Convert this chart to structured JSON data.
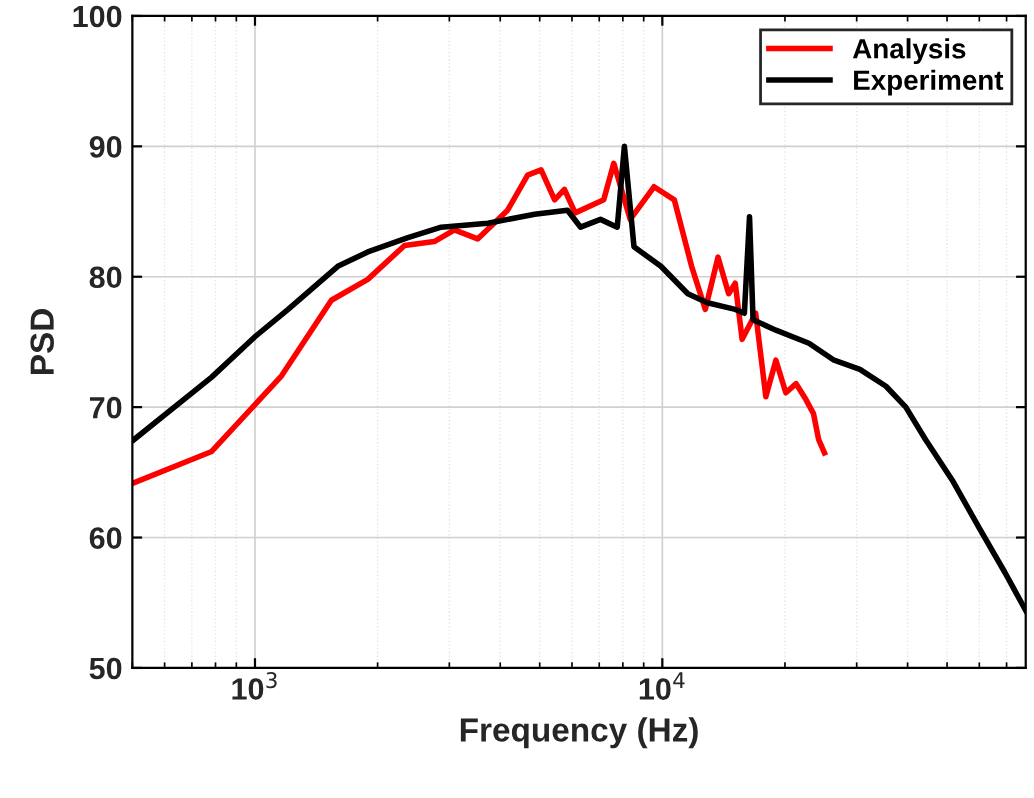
{
  "chart_data": {
    "type": "line",
    "xlabel": "Frequency (Hz)",
    "ylabel": "PSD",
    "log": "x",
    "grid": true,
    "legend": "top right",
    "marker": "none",
    "line_style": "solid",
    "xlim": [
      500,
      78000
    ],
    "xticks": [
      {
        "value": 1000,
        "label": "10$^{3}$"
      },
      {
        "value": 10000,
        "label": "10$^{4}$"
      }
    ],
    "ylim": [
      50,
      100
    ],
    "yticks": [
      50,
      60,
      70,
      80,
      90,
      100
    ],
    "series": [
      {
        "name": "Analysis",
        "color": "#ff0000",
        "x": [
          504,
          783,
          1162,
          1540,
          1892,
          2329,
          2755,
          3088,
          3520,
          4170,
          4670,
          5040,
          5440,
          5750,
          6110,
          7180,
          7600,
          8340,
          9540,
          10700,
          11800,
          12750,
          13700,
          14550,
          15100,
          15700,
          16950,
          17950,
          19000,
          20100,
          21300,
          22500,
          23500,
          24200,
          25000
        ],
        "values": [
          64.2,
          66.6,
          72.4,
          78.2,
          79.8,
          82.4,
          82.7,
          83.6,
          82.9,
          85.1,
          87.8,
          88.2,
          85.9,
          86.7,
          84.9,
          85.9,
          88.7,
          84.4,
          86.9,
          85.9,
          80.8,
          77.5,
          81.5,
          78.7,
          79.5,
          75.2,
          77.2,
          70.8,
          73.6,
          71.1,
          71.8,
          70.6,
          69.5,
          67.5,
          66.5
        ]
      },
      {
        "name": "Experiment",
        "color": "#000000",
        "x": [
          504,
          783,
          1000,
          1206,
          1597,
          1892,
          2374,
          2865,
          3730,
          4860,
          5850,
          6300,
          7050,
          7750,
          8070,
          8520,
          9920,
          11550,
          12900,
          15100,
          15900,
          16370,
          16700,
          19000,
          22900,
          26400,
          30550,
          35400,
          39600,
          44300,
          51500,
          59800,
          69400,
          78000
        ],
        "values": [
          67.5,
          72.3,
          75.4,
          77.5,
          80.8,
          81.9,
          83.0,
          83.8,
          84.1,
          84.8,
          85.1,
          83.8,
          84.4,
          83.8,
          90.0,
          82.3,
          80.8,
          78.7,
          78.0,
          77.5,
          77.2,
          84.6,
          76.7,
          75.9,
          74.9,
          73.6,
          72.9,
          71.6,
          70.0,
          67.5,
          64.4,
          60.8,
          57.3,
          54.4
        ]
      }
    ]
  }
}
